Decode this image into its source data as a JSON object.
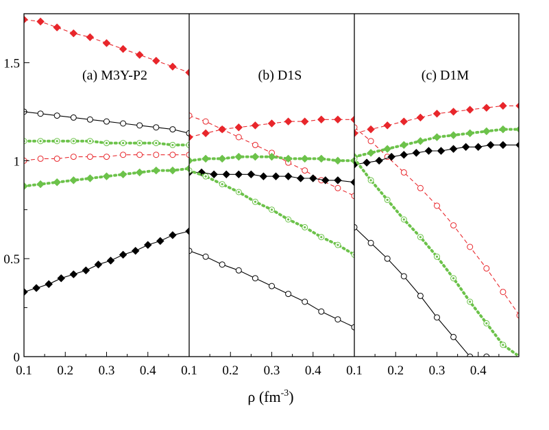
{
  "chart_data": {
    "type": "line",
    "xlabel": "ρ (fm",
    "xlabel_sup": "-3",
    "xlabel_close": ")",
    "ylim": [
      0,
      1.75
    ],
    "yticks": [
      {
        "value": 0,
        "label": "0"
      },
      {
        "value": 0.5,
        "label": "0.5"
      },
      {
        "value": 1.0,
        "label": "1"
      },
      {
        "value": 1.5,
        "label": "1.5"
      }
    ],
    "colors": {
      "red": "#e8262b",
      "green": "#6cc24a",
      "black": "#000000"
    },
    "panels": [
      {
        "label": "(a) M3Y-P2",
        "xlim": [
          0.1,
          0.5
        ],
        "xticks": [
          {
            "value": 0.1,
            "label": "0.1"
          },
          {
            "value": 0.2,
            "label": "0.2"
          },
          {
            "value": 0.3,
            "label": "0.3"
          },
          {
            "value": 0.4,
            "label": "0.4"
          }
        ],
        "series": [
          {
            "name": "red-filled",
            "color": "red",
            "marker": "diamond-filled",
            "line": "dashed",
            "x": [
              0.1,
              0.14,
              0.18,
              0.22,
              0.26,
              0.3,
              0.34,
              0.38,
              0.42,
              0.46,
              0.5
            ],
            "y": [
              1.72,
              1.71,
              1.68,
              1.65,
              1.63,
              1.6,
              1.57,
              1.54,
              1.51,
              1.48,
              1.45
            ]
          },
          {
            "name": "black-open",
            "color": "black",
            "marker": "circle-open",
            "line": "solid",
            "x": [
              0.1,
              0.14,
              0.18,
              0.22,
              0.26,
              0.3,
              0.34,
              0.38,
              0.42,
              0.46,
              0.5
            ],
            "y": [
              1.25,
              1.24,
              1.23,
              1.22,
              1.21,
              1.2,
              1.19,
              1.18,
              1.17,
              1.16,
              1.14
            ]
          },
          {
            "name": "green-open",
            "color": "green",
            "marker": "circle-dot",
            "line": "dotted",
            "x": [
              0.1,
              0.14,
              0.18,
              0.22,
              0.26,
              0.3,
              0.34,
              0.38,
              0.42,
              0.46,
              0.5
            ],
            "y": [
              1.1,
              1.1,
              1.1,
              1.1,
              1.1,
              1.09,
              1.09,
              1.09,
              1.09,
              1.08,
              1.08
            ]
          },
          {
            "name": "red-open",
            "color": "red",
            "marker": "circle-open",
            "line": "dashed",
            "x": [
              0.1,
              0.14,
              0.18,
              0.22,
              0.26,
              0.3,
              0.34,
              0.38,
              0.42,
              0.46,
              0.5
            ],
            "y": [
              1.0,
              1.01,
              1.01,
              1.02,
              1.02,
              1.02,
              1.03,
              1.03,
              1.03,
              1.03,
              1.03
            ]
          },
          {
            "name": "green-filled",
            "color": "green",
            "marker": "diamond-filled",
            "line": "dotted",
            "x": [
              0.1,
              0.14,
              0.18,
              0.22,
              0.26,
              0.3,
              0.34,
              0.38,
              0.42,
              0.46,
              0.5
            ],
            "y": [
              0.87,
              0.88,
              0.89,
              0.9,
              0.91,
              0.92,
              0.93,
              0.94,
              0.95,
              0.95,
              0.96
            ]
          },
          {
            "name": "black-filled",
            "color": "black",
            "marker": "diamond-filled",
            "line": "solid",
            "x": [
              0.1,
              0.13,
              0.16,
              0.19,
              0.22,
              0.25,
              0.28,
              0.31,
              0.34,
              0.37,
              0.4,
              0.43,
              0.46,
              0.5
            ],
            "y": [
              0.33,
              0.35,
              0.37,
              0.4,
              0.42,
              0.44,
              0.47,
              0.49,
              0.52,
              0.54,
              0.57,
              0.59,
              0.62,
              0.64
            ]
          }
        ]
      },
      {
        "label": "(b) D1S",
        "xlim": [
          0.1,
          0.5
        ],
        "xticks": [
          {
            "value": 0.1,
            "label": "0.1"
          },
          {
            "value": 0.2,
            "label": "0.2"
          },
          {
            "value": 0.3,
            "label": "0.3"
          },
          {
            "value": 0.4,
            "label": "0.4"
          }
        ],
        "series": [
          {
            "name": "red-open",
            "color": "red",
            "marker": "circle-open",
            "line": "dashed",
            "x": [
              0.1,
              0.14,
              0.18,
              0.22,
              0.26,
              0.3,
              0.34,
              0.38,
              0.42,
              0.46,
              0.5
            ],
            "y": [
              1.23,
              1.2,
              1.16,
              1.12,
              1.08,
              1.04,
              0.99,
              0.95,
              0.9,
              0.86,
              0.82
            ]
          },
          {
            "name": "red-filled",
            "color": "red",
            "marker": "diamond-filled",
            "line": "dashed",
            "x": [
              0.1,
              0.14,
              0.18,
              0.22,
              0.26,
              0.3,
              0.34,
              0.38,
              0.42,
              0.46,
              0.5
            ],
            "y": [
              1.12,
              1.14,
              1.16,
              1.17,
              1.18,
              1.19,
              1.2,
              1.2,
              1.21,
              1.21,
              1.21
            ]
          },
          {
            "name": "green-filled",
            "color": "green",
            "marker": "diamond-filled",
            "line": "dotted",
            "x": [
              0.1,
              0.14,
              0.18,
              0.22,
              0.26,
              0.3,
              0.34,
              0.38,
              0.42,
              0.46,
              0.5
            ],
            "y": [
              1.0,
              1.01,
              1.01,
              1.02,
              1.02,
              1.02,
              1.01,
              1.01,
              1.01,
              1.0,
              1.0
            ]
          },
          {
            "name": "black-filled",
            "color": "black",
            "marker": "diamond-filled",
            "line": "solid",
            "x": [
              0.1,
              0.13,
              0.16,
              0.19,
              0.22,
              0.25,
              0.28,
              0.31,
              0.34,
              0.37,
              0.4,
              0.43,
              0.46,
              0.5
            ],
            "y": [
              0.94,
              0.94,
              0.93,
              0.93,
              0.93,
              0.93,
              0.92,
              0.92,
              0.92,
              0.91,
              0.91,
              0.9,
              0.9,
              0.89
            ]
          },
          {
            "name": "green-open",
            "color": "green",
            "marker": "circle-dot",
            "line": "dotted",
            "x": [
              0.1,
              0.14,
              0.18,
              0.22,
              0.26,
              0.3,
              0.34,
              0.38,
              0.42,
              0.46,
              0.5
            ],
            "y": [
              0.95,
              0.92,
              0.88,
              0.84,
              0.79,
              0.75,
              0.7,
              0.66,
              0.61,
              0.57,
              0.52
            ]
          },
          {
            "name": "black-open",
            "color": "black",
            "marker": "circle-open",
            "line": "solid",
            "x": [
              0.1,
              0.14,
              0.18,
              0.22,
              0.26,
              0.3,
              0.34,
              0.38,
              0.42,
              0.46,
              0.5
            ],
            "y": [
              0.54,
              0.51,
              0.47,
              0.44,
              0.4,
              0.36,
              0.32,
              0.28,
              0.23,
              0.19,
              0.15
            ]
          }
        ]
      },
      {
        "label": "(c) D1M",
        "xlim": [
          0.1,
          0.5
        ],
        "xticks": [
          {
            "value": 0.1,
            "label": "0.1"
          },
          {
            "value": 0.2,
            "label": "0.2"
          },
          {
            "value": 0.3,
            "label": "0.3"
          },
          {
            "value": 0.4,
            "label": "0.4"
          }
        ],
        "series": [
          {
            "name": "red-filled",
            "color": "red",
            "marker": "diamond-filled",
            "line": "dashed",
            "x": [
              0.1,
              0.14,
              0.18,
              0.22,
              0.26,
              0.3,
              0.34,
              0.38,
              0.42,
              0.46,
              0.5
            ],
            "y": [
              1.14,
              1.16,
              1.18,
              1.2,
              1.22,
              1.24,
              1.25,
              1.26,
              1.27,
              1.28,
              1.28
            ]
          },
          {
            "name": "red-open",
            "color": "red",
            "marker": "circle-open",
            "line": "dashed",
            "x": [
              0.1,
              0.14,
              0.18,
              0.22,
              0.26,
              0.3,
              0.34,
              0.38,
              0.42,
              0.46,
              0.5
            ],
            "y": [
              1.17,
              1.1,
              1.02,
              0.94,
              0.86,
              0.77,
              0.67,
              0.56,
              0.45,
              0.33,
              0.21
            ]
          },
          {
            "name": "green-filled",
            "color": "green",
            "marker": "diamond-filled",
            "line": "dotted",
            "x": [
              0.1,
              0.14,
              0.18,
              0.22,
              0.26,
              0.3,
              0.34,
              0.38,
              0.42,
              0.46,
              0.5
            ],
            "y": [
              1.02,
              1.04,
              1.06,
              1.08,
              1.1,
              1.12,
              1.13,
              1.14,
              1.15,
              1.16,
              1.16
            ]
          },
          {
            "name": "black-filled",
            "color": "black",
            "marker": "diamond-filled",
            "line": "solid",
            "x": [
              0.1,
              0.13,
              0.16,
              0.19,
              0.22,
              0.25,
              0.28,
              0.31,
              0.34,
              0.37,
              0.4,
              0.43,
              0.46,
              0.5
            ],
            "y": [
              0.98,
              0.99,
              1.0,
              1.02,
              1.03,
              1.04,
              1.05,
              1.05,
              1.06,
              1.07,
              1.07,
              1.08,
              1.08,
              1.08
            ]
          },
          {
            "name": "green-open",
            "color": "green",
            "marker": "circle-dot",
            "line": "dotted",
            "x": [
              0.1,
              0.14,
              0.18,
              0.22,
              0.26,
              0.3,
              0.34,
              0.38,
              0.42,
              0.46,
              0.5
            ],
            "y": [
              1.01,
              0.9,
              0.8,
              0.7,
              0.61,
              0.51,
              0.4,
              0.28,
              0.17,
              0.06,
              0.0
            ]
          },
          {
            "name": "black-open",
            "color": "black",
            "marker": "circle-open",
            "line": "solid",
            "x": [
              0.1,
              0.14,
              0.18,
              0.22,
              0.26,
              0.3,
              0.34,
              0.38,
              0.42
            ],
            "y": [
              0.66,
              0.58,
              0.5,
              0.41,
              0.31,
              0.2,
              0.1,
              0.0,
              0.0
            ]
          }
        ]
      }
    ]
  }
}
